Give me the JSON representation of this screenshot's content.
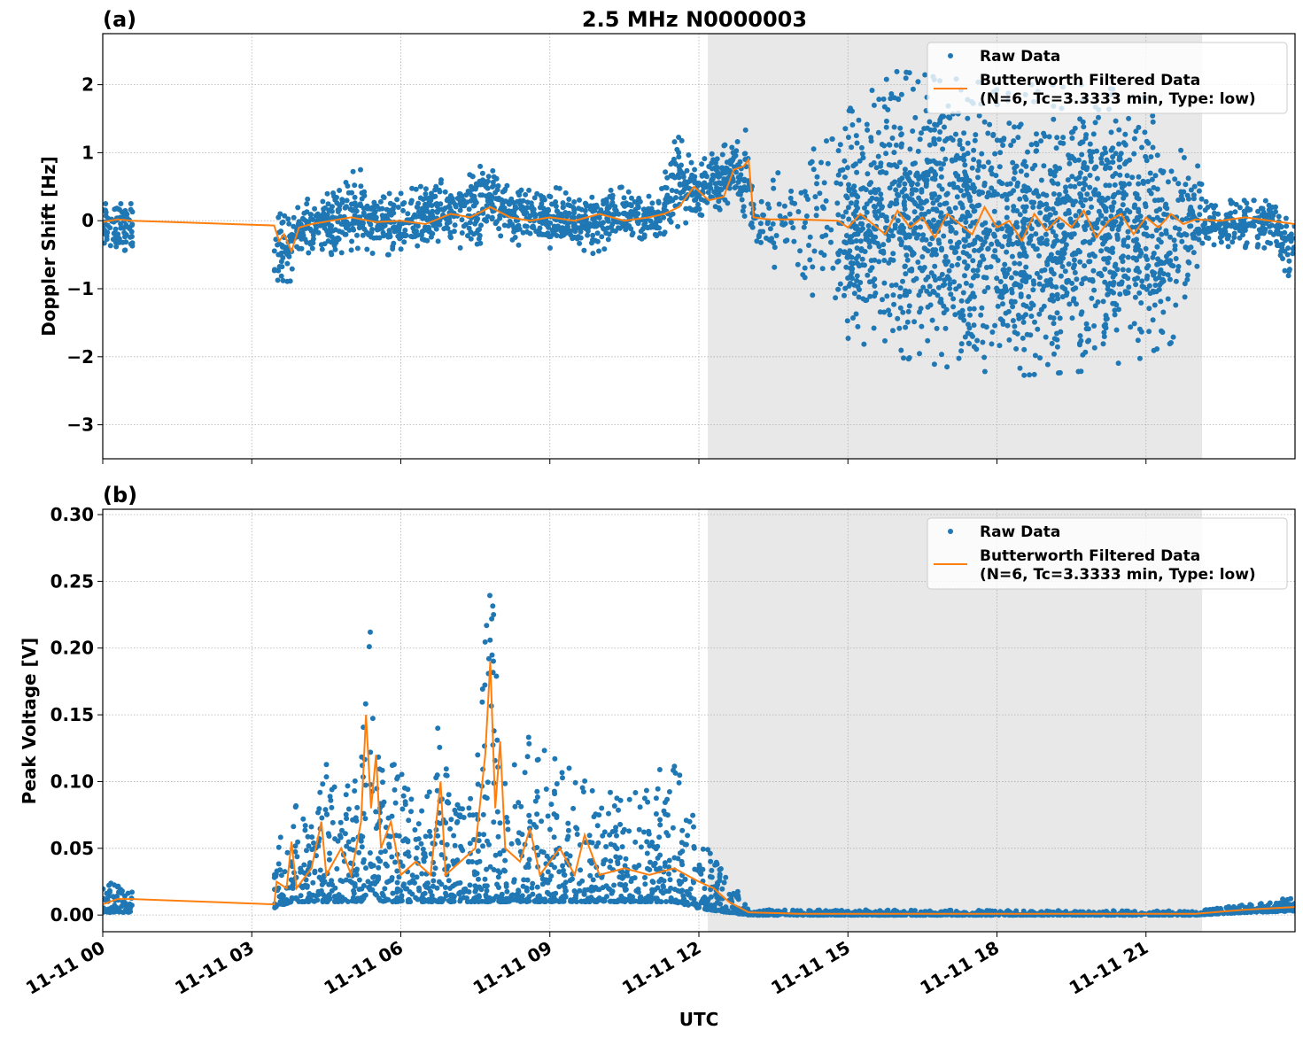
{
  "chart_data": [
    {
      "type": "scatter",
      "panel_label": "(a)",
      "title": "2.5 MHz N0000003",
      "xlabel": "",
      "ylabel": "Doppler Shift [Hz]",
      "xlim_hours": [
        0,
        24
      ],
      "ylim": [
        -3.5,
        2.75
      ],
      "yticks": [
        -3,
        -2,
        -1,
        0,
        1,
        2
      ],
      "ytick_labels": [
        "−3",
        "−2",
        "−1",
        "0",
        "1",
        "2"
      ],
      "grid": true,
      "legend_position": "top-right",
      "shaded_region_hours": [
        12.18,
        22.13
      ],
      "colors": {
        "raw": "#1f77b4",
        "filtered": "#ff7f0e",
        "shade": "#e8e8e8"
      },
      "legend": [
        "Raw Data",
        "Butterworth Filtered Data",
        "(N=6, Tc=3.3333 min, Type: low)"
      ],
      "raw_envelope_segments": [
        [
          [
            0,
            -0.45,
            0.25,
            1
          ],
          [
            0.6,
            -0.45,
            0.25,
            1
          ]
        ],
        [
          [
            3.45,
            -1.1,
            0.1,
            1
          ],
          [
            3.8,
            -0.9,
            0.1,
            1
          ],
          [
            4.0,
            -0.5,
            0.3,
            1
          ],
          [
            4.8,
            -0.5,
            0.5,
            1
          ],
          [
            5.1,
            -0.4,
            0.9,
            1
          ],
          [
            5.5,
            -0.5,
            0.4,
            1
          ],
          [
            6.0,
            -0.5,
            0.4,
            1
          ],
          [
            6.6,
            -0.4,
            0.6,
            1
          ],
          [
            7.2,
            -0.4,
            0.6,
            1
          ],
          [
            7.8,
            -0.3,
            0.9,
            1
          ],
          [
            8.3,
            -0.4,
            0.5,
            1
          ],
          [
            9.0,
            -0.4,
            0.5,
            1
          ],
          [
            9.8,
            -0.5,
            0.4,
            1
          ],
          [
            10.5,
            -0.3,
            0.5,
            1
          ],
          [
            11.2,
            -0.3,
            0.3,
            1
          ],
          [
            11.5,
            -0.1,
            1.3,
            1
          ],
          [
            12.0,
            0,
            0.9,
            1
          ],
          [
            12.5,
            0.1,
            1.1,
            1
          ],
          [
            13.0,
            0,
            1.4,
            1
          ],
          [
            13.1,
            -0.2,
            0.3,
            0.6
          ],
          [
            13.5,
            -0.8,
            0.6,
            0.3
          ],
          [
            14.0,
            -1.5,
            1.2,
            0.4
          ],
          [
            14.8,
            -1.3,
            1.2,
            0.5
          ],
          [
            14.9,
            -1.7,
            1.6,
            1.6
          ],
          [
            16,
            -2.0,
            2.2,
            2
          ],
          [
            18,
            -2.3,
            2.0,
            2
          ],
          [
            20,
            -2.2,
            2.0,
            2
          ],
          [
            21.0,
            -2.0,
            1.8,
            1.8
          ],
          [
            21.5,
            -1.8,
            1.0,
            1.2
          ],
          [
            22.0,
            -0.9,
            1.2,
            0.8
          ],
          [
            22.2,
            -0.4,
            0.3,
            0.8
          ],
          [
            23.5,
            -0.4,
            0.3,
            0.8
          ],
          [
            24,
            -1.0,
            0.2,
            0.8
          ]
        ]
      ],
      "filtered": {
        "hours": [
          0,
          0.3,
          0.6,
          3.45,
          3.55,
          3.65,
          3.8,
          3.95,
          4.2,
          4.6,
          5.0,
          5.5,
          6.0,
          6.5,
          7.0,
          7.4,
          7.8,
          8.2,
          8.6,
          9.0,
          9.5,
          10.0,
          10.5,
          11.0,
          11.3,
          11.6,
          11.9,
          12.2,
          12.5,
          12.7,
          12.9,
          13.0,
          13.1,
          13.4,
          14.0,
          14.8,
          15.0,
          15.25,
          15.5,
          15.75,
          16.0,
          16.25,
          16.5,
          16.75,
          17.0,
          17.25,
          17.5,
          17.75,
          18.0,
          18.25,
          18.5,
          18.75,
          19.0,
          19.25,
          19.5,
          19.75,
          20.0,
          20.25,
          20.5,
          20.75,
          21.0,
          21.25,
          21.5,
          21.75,
          22.0,
          22.5,
          23.0,
          23.5,
          24.0
        ],
        "values": [
          -0.02,
          0.02,
          0.0,
          -0.07,
          -0.3,
          -0.2,
          -0.45,
          -0.1,
          -0.05,
          0.0,
          0.05,
          -0.02,
          0.0,
          -0.05,
          0.1,
          0.05,
          0.2,
          0.05,
          0.0,
          0.05,
          0.0,
          0.1,
          0.0,
          0.05,
          0.1,
          0.2,
          0.5,
          0.3,
          0.35,
          0.75,
          0.8,
          0.9,
          0.05,
          0.02,
          0.02,
          0.0,
          -0.1,
          0.1,
          -0.05,
          -0.2,
          0.15,
          -0.1,
          0.05,
          -0.25,
          0.1,
          -0.05,
          -0.2,
          0.2,
          -0.1,
          0.0,
          -0.3,
          0.1,
          -0.15,
          0.05,
          -0.1,
          0.15,
          -0.25,
          0.0,
          0.1,
          -0.2,
          0.05,
          -0.1,
          0.1,
          -0.05,
          0.02,
          0.0,
          0.05,
          0.0,
          -0.05
        ]
      }
    },
    {
      "type": "scatter",
      "panel_label": "(b)",
      "xlabel": "UTC",
      "ylabel": "Peak Voltage [V]",
      "xlim_hours": [
        0,
        24
      ],
      "ylim": [
        -0.0125,
        0.304
      ],
      "yticks": [
        0,
        0.05,
        0.1,
        0.15,
        0.2,
        0.25,
        0.3
      ],
      "ytick_labels": [
        "0.00",
        "0.05",
        "0.10",
        "0.15",
        "0.20",
        "0.25",
        "0.30"
      ],
      "xticks_hours": [
        0,
        3,
        6,
        9,
        12,
        15,
        18,
        21
      ],
      "xtick_labels": [
        "11-11 00",
        "11-11 03",
        "11-11 06",
        "11-11 09",
        "11-11 12",
        "11-11 15",
        "11-11 18",
        "11-11 21"
      ],
      "grid": true,
      "legend_position": "top-right",
      "shaded_region_hours": [
        12.18,
        22.13
      ],
      "colors": {
        "raw": "#1f77b4",
        "filtered": "#ff7f0e",
        "shade": "#e8e8e8"
      },
      "legend": [
        "Raw Data",
        "Butterworth Filtered Data",
        "(N=6, Tc=3.3333 min, Type: low)"
      ],
      "raw_envelope_segments": [
        [
          [
            0,
            0.002,
            0.025,
            1
          ],
          [
            0.6,
            0.002,
            0.022,
            1
          ]
        ],
        [
          [
            3.45,
            0.005,
            0.045,
            1
          ],
          [
            3.8,
            0.01,
            0.09,
            1
          ],
          [
            4.2,
            0.01,
            0.07,
            1
          ],
          [
            4.5,
            0.01,
            0.12,
            1
          ],
          [
            4.8,
            0.01,
            0.08,
            1
          ],
          [
            5.2,
            0.01,
            0.14,
            1
          ],
          [
            5.4,
            0.02,
            0.22,
            1.5
          ],
          [
            5.6,
            0.01,
            0.12,
            1
          ],
          [
            6.0,
            0.01,
            0.11,
            1
          ],
          [
            6.5,
            0.01,
            0.08,
            1
          ],
          [
            6.8,
            0.01,
            0.18,
            1.3
          ],
          [
            7.0,
            0.01,
            0.08,
            1
          ],
          [
            7.5,
            0.01,
            0.09,
            1
          ],
          [
            7.8,
            0.01,
            0.29,
            1.6
          ],
          [
            8.0,
            0.01,
            0.12,
            1
          ],
          [
            8.4,
            0.01,
            0.14,
            1
          ],
          [
            9.0,
            0.01,
            0.12,
            1
          ],
          [
            9.5,
            0.01,
            0.11,
            1
          ],
          [
            10.0,
            0.01,
            0.09,
            1
          ],
          [
            11.0,
            0.01,
            0.1,
            1
          ],
          [
            11.5,
            0.01,
            0.125,
            1
          ],
          [
            12.0,
            0.005,
            0.06,
            1
          ],
          [
            12.6,
            0.002,
            0.03,
            1
          ],
          [
            13.0,
            0,
            0.004,
            0.6
          ],
          [
            22,
            0,
            0.003,
            0.6
          ],
          [
            23,
            0.002,
            0.008,
            0.8
          ],
          [
            24,
            0.003,
            0.015,
            0.8
          ]
        ]
      ],
      "filtered": {
        "hours": [
          0,
          0.3,
          0.6,
          3.45,
          3.5,
          3.7,
          3.8,
          3.9,
          4.2,
          4.4,
          4.5,
          4.8,
          5.0,
          5.2,
          5.3,
          5.4,
          5.5,
          5.6,
          5.8,
          6.0,
          6.3,
          6.6,
          6.8,
          6.9,
          7.2,
          7.5,
          7.7,
          7.8,
          7.9,
          8.0,
          8.1,
          8.4,
          8.6,
          8.8,
          9.2,
          9.5,
          9.7,
          10.0,
          10.5,
          11.0,
          11.5,
          12.0,
          12.3,
          12.6,
          13.0,
          14.0,
          22.0,
          23.0,
          24.0
        ],
        "values": [
          0.008,
          0.012,
          0.012,
          0.008,
          0.025,
          0.02,
          0.055,
          0.02,
          0.035,
          0.07,
          0.03,
          0.05,
          0.03,
          0.07,
          0.15,
          0.08,
          0.12,
          0.05,
          0.07,
          0.03,
          0.04,
          0.03,
          0.1,
          0.03,
          0.04,
          0.05,
          0.12,
          0.19,
          0.08,
          0.13,
          0.05,
          0.04,
          0.065,
          0.03,
          0.05,
          0.03,
          0.06,
          0.03,
          0.035,
          0.03,
          0.035,
          0.025,
          0.02,
          0.01,
          0.002,
          0.001,
          0.001,
          0.004,
          0.006
        ]
      }
    }
  ]
}
